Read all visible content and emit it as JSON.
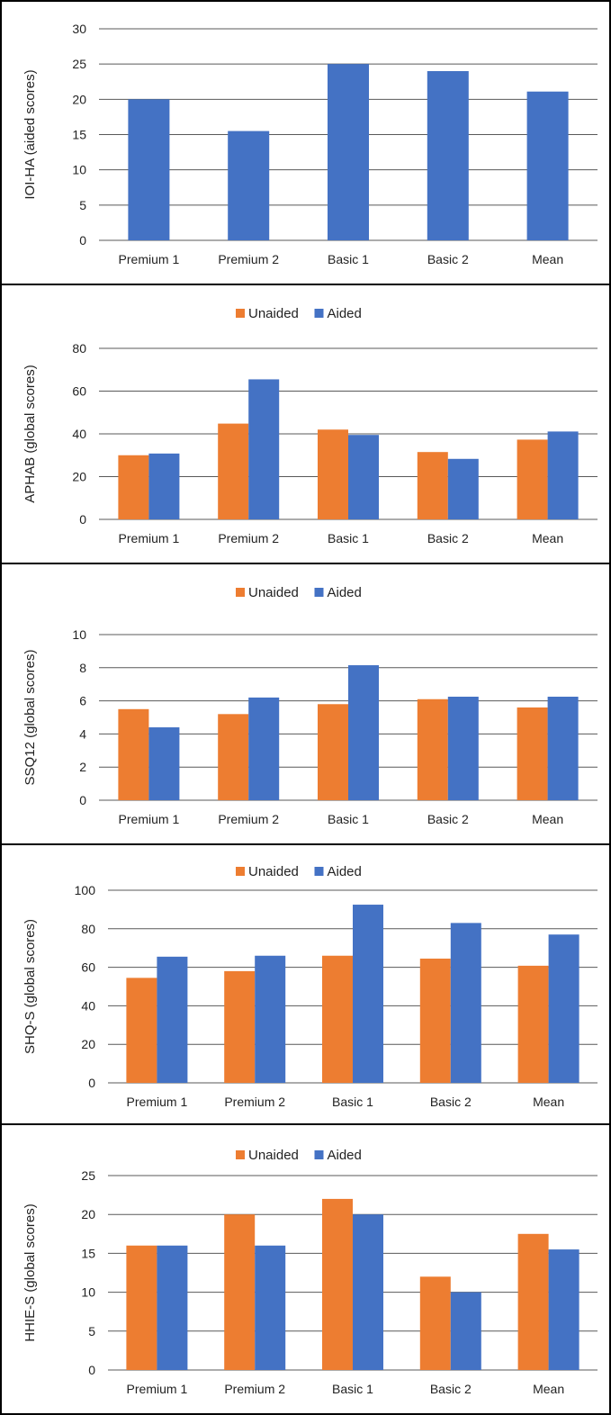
{
  "colors": {
    "unaided": "#ED7D31",
    "aided": "#4472C4",
    "grid": "#595959"
  },
  "chart_data": [
    {
      "type": "bar",
      "ylabel": "IOI-HA (aided scores)",
      "categories": [
        "Premium 1",
        "Premium 2",
        "Basic 1",
        "Basic 2",
        "Mean"
      ],
      "ylim": [
        0,
        30
      ],
      "yticks": [
        0,
        5,
        10,
        15,
        20,
        25,
        30
      ],
      "legend": "none",
      "grid": true,
      "series": [
        {
          "values": [
            20,
            15.5,
            25,
            24,
            21.1
          ],
          "color": "#4472C4"
        }
      ]
    },
    {
      "type": "bar",
      "ylabel": "APHAB (global scores)",
      "categories": [
        "Premium 1",
        "Premium 2",
        "Basic 1",
        "Basic 2",
        "Mean"
      ],
      "ylim": [
        0,
        80
      ],
      "yticks": [
        0,
        20,
        40,
        60,
        80
      ],
      "legend": "top-center",
      "grid": true,
      "series": [
        {
          "name": "Unaided",
          "values": [
            30,
            44.8,
            42,
            31.5,
            37.3
          ],
          "color": "#ED7D31"
        },
        {
          "name": "Aided",
          "values": [
            30.8,
            65.5,
            39.5,
            28.3,
            41.1
          ],
          "color": "#4472C4"
        }
      ]
    },
    {
      "type": "bar",
      "ylabel": "SSQ12 (global scores)",
      "categories": [
        "Premium 1",
        "Premium 2",
        "Basic 1",
        "Basic 2",
        "Mean"
      ],
      "ylim": [
        0,
        10
      ],
      "yticks": [
        0,
        2,
        4,
        6,
        8,
        10
      ],
      "legend": "top-center",
      "grid": true,
      "series": [
        {
          "name": "Unaided",
          "values": [
            5.5,
            5.2,
            5.8,
            6.1,
            5.6
          ],
          "color": "#ED7D31"
        },
        {
          "name": "Aided",
          "values": [
            4.4,
            6.2,
            8.15,
            6.25,
            6.25
          ],
          "color": "#4472C4"
        }
      ]
    },
    {
      "type": "bar",
      "ylabel": "SHQ-S (global scores)",
      "categories": [
        "Premium 1",
        "Premium 2",
        "Basic 1",
        "Basic 2",
        "Mean"
      ],
      "ylim": [
        0,
        100
      ],
      "yticks": [
        0,
        20,
        40,
        60,
        80,
        100
      ],
      "legend": "top-center",
      "grid": true,
      "series": [
        {
          "name": "Unaided",
          "values": [
            54.5,
            58,
            66,
            64.5,
            60.8
          ],
          "color": "#ED7D31"
        },
        {
          "name": "Aided",
          "values": [
            65.5,
            66,
            92.5,
            83,
            77
          ],
          "color": "#4472C4"
        }
      ]
    },
    {
      "type": "bar",
      "ylabel": "HHIE-S (global scores)",
      "categories": [
        "Premium 1",
        "Premium 2",
        "Basic 1",
        "Basic 2",
        "Mean"
      ],
      "ylim": [
        0,
        25
      ],
      "yticks": [
        0,
        5,
        10,
        15,
        20,
        25
      ],
      "legend": "top-center",
      "grid": true,
      "series": [
        {
          "name": "Unaided",
          "values": [
            16,
            20,
            22,
            12,
            17.5
          ],
          "color": "#ED7D31"
        },
        {
          "name": "Aided",
          "values": [
            16,
            16,
            20,
            10,
            15.5
          ],
          "color": "#4472C4"
        }
      ]
    }
  ]
}
